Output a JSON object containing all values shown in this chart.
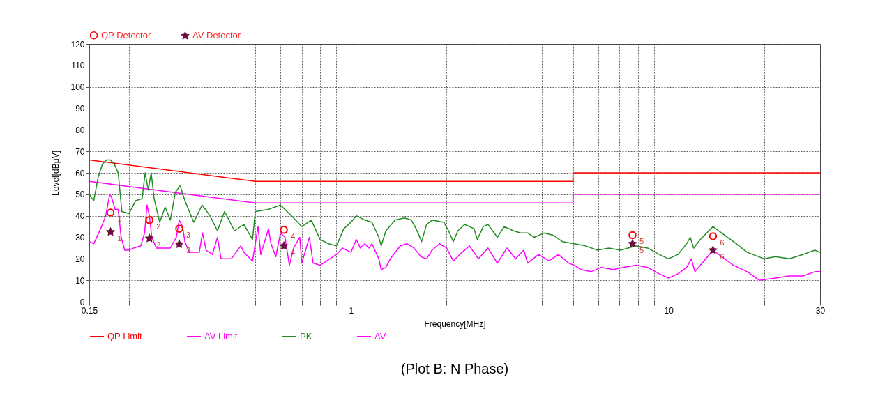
{
  "chart_data": {
    "type": "line",
    "xlabel": "Frequency[MHz]",
    "ylabel": "Level[dBμV]",
    "log": "x",
    "grid": true,
    "legend": "bottom",
    "xlim": [
      0.15,
      30
    ],
    "ylim": [
      0,
      120
    ],
    "xticks": [
      0.15,
      {
        "value": 0.2,
        "label": null
      },
      {
        "value": 0.3,
        "label": null
      },
      {
        "value": 0.4,
        "label": null
      },
      {
        "value": 0.5,
        "label": null
      },
      {
        "value": 0.6,
        "label": null
      },
      {
        "value": 0.7,
        "label": null
      },
      {
        "value": 0.8,
        "label": null
      },
      {
        "value": 0.9,
        "label": null
      },
      1,
      {
        "value": 2,
        "label": null
      },
      {
        "value": 3,
        "label": null
      },
      {
        "value": 4,
        "label": null
      },
      {
        "value": 5,
        "label": null
      },
      {
        "value": 6,
        "label": null
      },
      {
        "value": 7,
        "label": null
      },
      {
        "value": 8,
        "label": null
      },
      {
        "value": 9,
        "label": null
      },
      10,
      {
        "value": 20,
        "label": null
      },
      30
    ],
    "yticks": [
      0,
      10,
      20,
      30,
      40,
      50,
      60,
      70,
      80,
      90,
      100,
      110,
      120
    ],
    "series": [
      {
        "name": "QP Limit",
        "color": "#ff0000",
        "x": [
          0.15,
          0.5,
          5,
          5,
          30
        ],
        "values": [
          66,
          56,
          56,
          60,
          60
        ]
      },
      {
        "name": "AV Limit",
        "color": "#ff00ff",
        "x": [
          0.15,
          0.5,
          5,
          5,
          30
        ],
        "values": [
          56,
          46,
          46,
          50,
          50
        ]
      },
      {
        "name": "PK",
        "color": "#228b22",
        "x": [
          0.15,
          0.155,
          0.16,
          0.165,
          0.17,
          0.175,
          0.18,
          0.185,
          0.19,
          0.2,
          0.21,
          0.22,
          0.225,
          0.23,
          0.235,
          0.24,
          0.25,
          0.26,
          0.27,
          0.28,
          0.29,
          0.3,
          0.32,
          0.34,
          0.36,
          0.38,
          0.4,
          0.43,
          0.46,
          0.49,
          0.5,
          0.55,
          0.6,
          0.65,
          0.7,
          0.75,
          0.8,
          0.85,
          0.9,
          0.95,
          1.0,
          1.04,
          1.106,
          1.164,
          1.224,
          1.245,
          1.288,
          1.378,
          1.473,
          1.55,
          1.603,
          1.67,
          1.73,
          1.8,
          1.96,
          2.03,
          2.1,
          2.17,
          2.28,
          2.44,
          2.5,
          2.61,
          2.7,
          2.89,
          3.04,
          3.25,
          3.42,
          3.6,
          3.78,
          4.05,
          4.33,
          4.63,
          5.04,
          5.48,
          5.97,
          6.49,
          7.06,
          7.9,
          8.59,
          9.35,
          10,
          10.7,
          11.4,
          11.7,
          12.0,
          12.6,
          13.8,
          14.7,
          16.0,
          17.7,
          20,
          21.7,
          24,
          26.5,
          28.9,
          30
        ],
        "values": [
          50,
          47,
          58,
          64,
          66,
          66,
          64,
          60,
          42,
          41,
          47,
          48,
          60,
          52,
          60,
          48,
          37,
          44,
          38,
          51,
          54,
          47,
          37,
          45,
          40,
          33,
          42,
          33,
          36,
          29,
          42,
          43,
          45,
          40,
          35,
          38,
          29,
          27,
          26,
          34,
          37,
          40,
          38,
          37,
          30,
          26,
          33,
          38,
          39,
          38,
          34,
          28,
          36,
          38,
          37,
          33,
          28,
          33,
          36,
          34,
          29,
          35,
          36,
          30,
          35,
          33,
          32,
          32,
          30,
          32,
          31,
          28,
          27,
          26,
          24,
          25,
          24,
          26,
          25,
          22,
          20,
          22,
          27,
          30,
          25,
          29,
          35,
          32,
          28,
          23,
          20,
          21,
          20,
          22,
          24,
          23
        ]
      },
      {
        "name": "AV",
        "color": "#ff00ff",
        "x": [
          0.15,
          0.155,
          0.164,
          0.169,
          0.174,
          0.176,
          0.181,
          0.185,
          0.189,
          0.194,
          0.2,
          0.207,
          0.218,
          0.224,
          0.228,
          0.232,
          0.236,
          0.244,
          0.27,
          0.282,
          0.288,
          0.295,
          0.3,
          0.31,
          0.333,
          0.341,
          0.35,
          0.366,
          0.38,
          0.39,
          0.42,
          0.45,
          0.46,
          0.49,
          0.51,
          0.52,
          0.55,
          0.56,
          0.58,
          0.6,
          0.62,
          0.64,
          0.66,
          0.69,
          0.7,
          0.74,
          0.76,
          0.8,
          0.9,
          0.94,
          1.0,
          1.04,
          1.07,
          1.106,
          1.14,
          1.164,
          1.224,
          1.245,
          1.288,
          1.33,
          1.43,
          1.5,
          1.58,
          1.66,
          1.73,
          1.8,
          1.9,
          2.0,
          2.1,
          2.2,
          2.36,
          2.52,
          2.7,
          2.89,
          3.1,
          3.3,
          3.5,
          3.6,
          3.9,
          4.2,
          4.5,
          4.85,
          5.04,
          5.3,
          5.7,
          6.15,
          6.7,
          7.2,
          7.9,
          8.59,
          9.35,
          10,
          10.7,
          11.4,
          11.8,
          12.1,
          12.6,
          13.8,
          14.7,
          16.0,
          17.7,
          19.3,
          21.7,
          24,
          26.5,
          28.9,
          30
        ],
        "values": [
          28,
          27,
          35,
          40,
          50,
          49,
          43,
          43,
          30,
          24,
          24,
          25,
          26,
          32,
          45,
          40,
          30,
          25,
          25,
          30,
          38,
          35,
          28,
          23,
          23,
          32,
          24,
          22,
          30,
          20,
          20,
          26,
          23,
          19,
          35,
          22,
          34,
          27,
          21,
          32,
          30,
          17,
          25,
          30,
          18,
          30,
          18,
          17,
          22,
          25,
          23,
          29,
          25,
          27,
          25,
          27,
          20,
          15,
          16,
          20,
          26,
          27,
          25,
          21,
          20,
          24,
          27,
          25,
          19,
          22,
          26,
          20,
          25,
          18,
          25,
          20,
          24,
          18,
          22,
          19,
          22,
          18,
          17,
          15,
          14,
          16,
          15,
          16,
          17,
          16,
          13,
          11,
          13,
          16,
          20,
          14,
          17,
          24,
          21,
          17,
          14,
          10,
          11,
          12,
          12,
          14,
          14
        ]
      },
      {
        "name": "QP Detector",
        "type": "scatter",
        "marker": "circle",
        "color": "#ff0000",
        "x": [
          0.175,
          0.232,
          0.288,
          0.615,
          7.7,
          13.8
        ],
        "values": [
          41.5,
          38,
          34,
          33.5,
          31,
          30.5
        ]
      },
      {
        "name": "AV Detector",
        "type": "scatter",
        "marker": "star",
        "color": "#6b1040",
        "x": [
          0.175,
          0.232,
          0.288,
          0.615,
          7.7,
          13.8
        ],
        "values": [
          32.5,
          29.5,
          26.8,
          26,
          27,
          24
        ]
      }
    ],
    "annotations": [
      {
        "text": "1",
        "x": 0.175,
        "y": 41.5
      },
      {
        "text": "2",
        "x": 0.232,
        "y": 38
      },
      {
        "text": "3",
        "x": 0.288,
        "y": 34
      },
      {
        "text": "4",
        "x": 0.615,
        "y": 33.5
      },
      {
        "text": "5",
        "x": 7.7,
        "y": 31
      },
      {
        "text": "6",
        "x": 13.8,
        "y": 30.5
      },
      {
        "text": "1",
        "x": 0.175,
        "y": 32.5
      },
      {
        "text": "2",
        "x": 0.232,
        "y": 29.5
      },
      {
        "text": "3",
        "x": 0.288,
        "y": 26.8
      },
      {
        "text": "4",
        "x": 0.615,
        "y": 26
      },
      {
        "text": "5",
        "x": 7.7,
        "y": 27
      },
      {
        "text": "6",
        "x": 13.8,
        "y": 24
      },
      "(Plot B: N Phase)"
    ]
  }
}
